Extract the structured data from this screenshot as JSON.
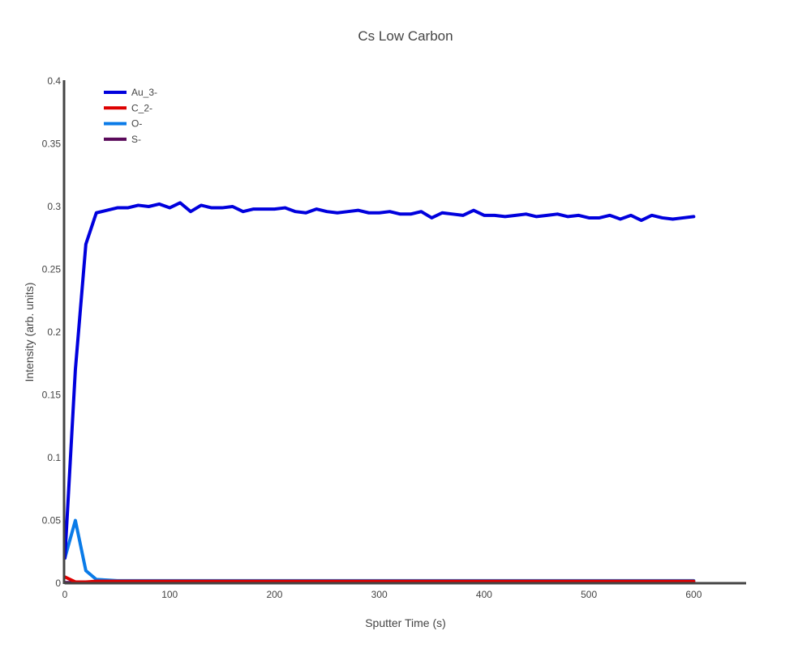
{
  "chart_data": {
    "type": "line",
    "title": "Cs Low Carbon",
    "xlabel": "Sputter Time (s)",
    "ylabel": "Intensity (arb. units)",
    "xlim": [
      0,
      650
    ],
    "ylim": [
      0,
      0.4
    ],
    "x_ticks": [
      "0",
      "100",
      "200",
      "300",
      "400",
      "500",
      "600"
    ],
    "y_ticks": [
      "0",
      "0.05",
      "0.1",
      "0.15",
      "0.2",
      "0.25",
      "0.3",
      "0.35",
      "0.4"
    ],
    "grid": false,
    "legend_position": "top-left",
    "x": [
      0,
      10,
      20,
      30,
      40,
      50,
      60,
      70,
      80,
      90,
      100,
      110,
      120,
      130,
      140,
      150,
      160,
      170,
      180,
      190,
      200,
      210,
      220,
      230,
      240,
      250,
      260,
      270,
      280,
      290,
      300,
      310,
      320,
      330,
      340,
      350,
      360,
      370,
      380,
      390,
      400,
      410,
      420,
      430,
      440,
      450,
      460,
      470,
      480,
      490,
      500,
      510,
      520,
      530,
      540,
      550,
      560,
      570,
      580,
      590,
      600
    ],
    "series": [
      {
        "name": "Au_3-",
        "color": "#0000dd",
        "values": [
          0.02,
          0.17,
          0.27,
          0.295,
          0.297,
          0.299,
          0.299,
          0.301,
          0.3,
          0.302,
          0.299,
          0.303,
          0.296,
          0.301,
          0.299,
          0.299,
          0.3,
          0.296,
          0.298,
          0.298,
          0.298,
          0.299,
          0.296,
          0.295,
          0.298,
          0.296,
          0.295,
          0.296,
          0.297,
          0.295,
          0.295,
          0.296,
          0.294,
          0.294,
          0.296,
          0.291,
          0.295,
          0.294,
          0.293,
          0.297,
          0.293,
          0.293,
          0.292,
          0.293,
          0.294,
          0.292,
          0.293,
          0.294,
          0.292,
          0.293,
          0.291,
          0.291,
          0.293,
          0.29,
          0.293,
          0.289,
          0.293,
          0.291,
          0.29,
          0.291,
          0.292
        ]
      },
      {
        "name": "C_2-",
        "color": "#dd0000",
        "values": [
          0.005,
          0.001,
          0.001,
          0.0015,
          0.0015,
          0.0015,
          0.0015,
          0.0015,
          0.0015,
          0.0015,
          0.0015,
          0.0015,
          0.0015,
          0.0015,
          0.0015,
          0.0015,
          0.0015,
          0.0015,
          0.0015,
          0.0015,
          0.0015,
          0.0015,
          0.0015,
          0.0015,
          0.0015,
          0.0015,
          0.0015,
          0.0015,
          0.0015,
          0.0015,
          0.0015,
          0.0015,
          0.0015,
          0.0015,
          0.0015,
          0.0015,
          0.0015,
          0.0015,
          0.0015,
          0.0015,
          0.0015,
          0.0015,
          0.0015,
          0.0015,
          0.0015,
          0.0015,
          0.0015,
          0.0015,
          0.0015,
          0.0015,
          0.0015,
          0.0015,
          0.0015,
          0.0015,
          0.0015,
          0.0015,
          0.0015,
          0.0015,
          0.0015,
          0.0015,
          0.0015
        ]
      },
      {
        "name": "O-",
        "color": "#0a7be8",
        "values": [
          0.02,
          0.05,
          0.01,
          0.003,
          0.0025,
          0.002,
          0.002,
          0.002,
          0.002,
          0.002,
          0.002,
          0.002,
          0.002,
          0.002,
          0.002,
          0.002,
          0.002,
          0.002,
          0.002,
          0.002,
          0.002,
          0.002,
          0.002,
          0.002,
          0.002,
          0.002,
          0.002,
          0.002,
          0.002,
          0.002,
          0.002,
          0.002,
          0.002,
          0.002,
          0.002,
          0.002,
          0.002,
          0.002,
          0.002,
          0.002,
          0.002,
          0.002,
          0.002,
          0.002,
          0.002,
          0.002,
          0.002,
          0.002,
          0.002,
          0.002,
          0.002,
          0.002,
          0.002,
          0.002,
          0.002,
          0.002,
          0.002,
          0.002,
          0.002,
          0.002,
          0.002
        ]
      },
      {
        "name": "S-",
        "color": "#5a0a5a",
        "values": [
          0.0005,
          0.0005,
          0.0005,
          0.0005,
          0.0005,
          0.0005,
          0.0005,
          0.0005,
          0.0005,
          0.0005,
          0.0005,
          0.0005,
          0.0005,
          0.0005,
          0.0005,
          0.0005,
          0.0005,
          0.0005,
          0.0005,
          0.0005,
          0.0005,
          0.0005,
          0.0005,
          0.0005,
          0.0005,
          0.0005,
          0.0005,
          0.0005,
          0.0005,
          0.0005,
          0.0005,
          0.0005,
          0.0005,
          0.0005,
          0.0005,
          0.0005,
          0.0005,
          0.0005,
          0.0005,
          0.0005,
          0.0005,
          0.0005,
          0.0005,
          0.0005,
          0.0005,
          0.0005,
          0.0005,
          0.0005,
          0.0005,
          0.0005,
          0.0005,
          0.0005,
          0.0005,
          0.0005,
          0.0005,
          0.0005,
          0.0005,
          0.0005,
          0.0005,
          0.0005,
          0.0005
        ]
      }
    ]
  }
}
